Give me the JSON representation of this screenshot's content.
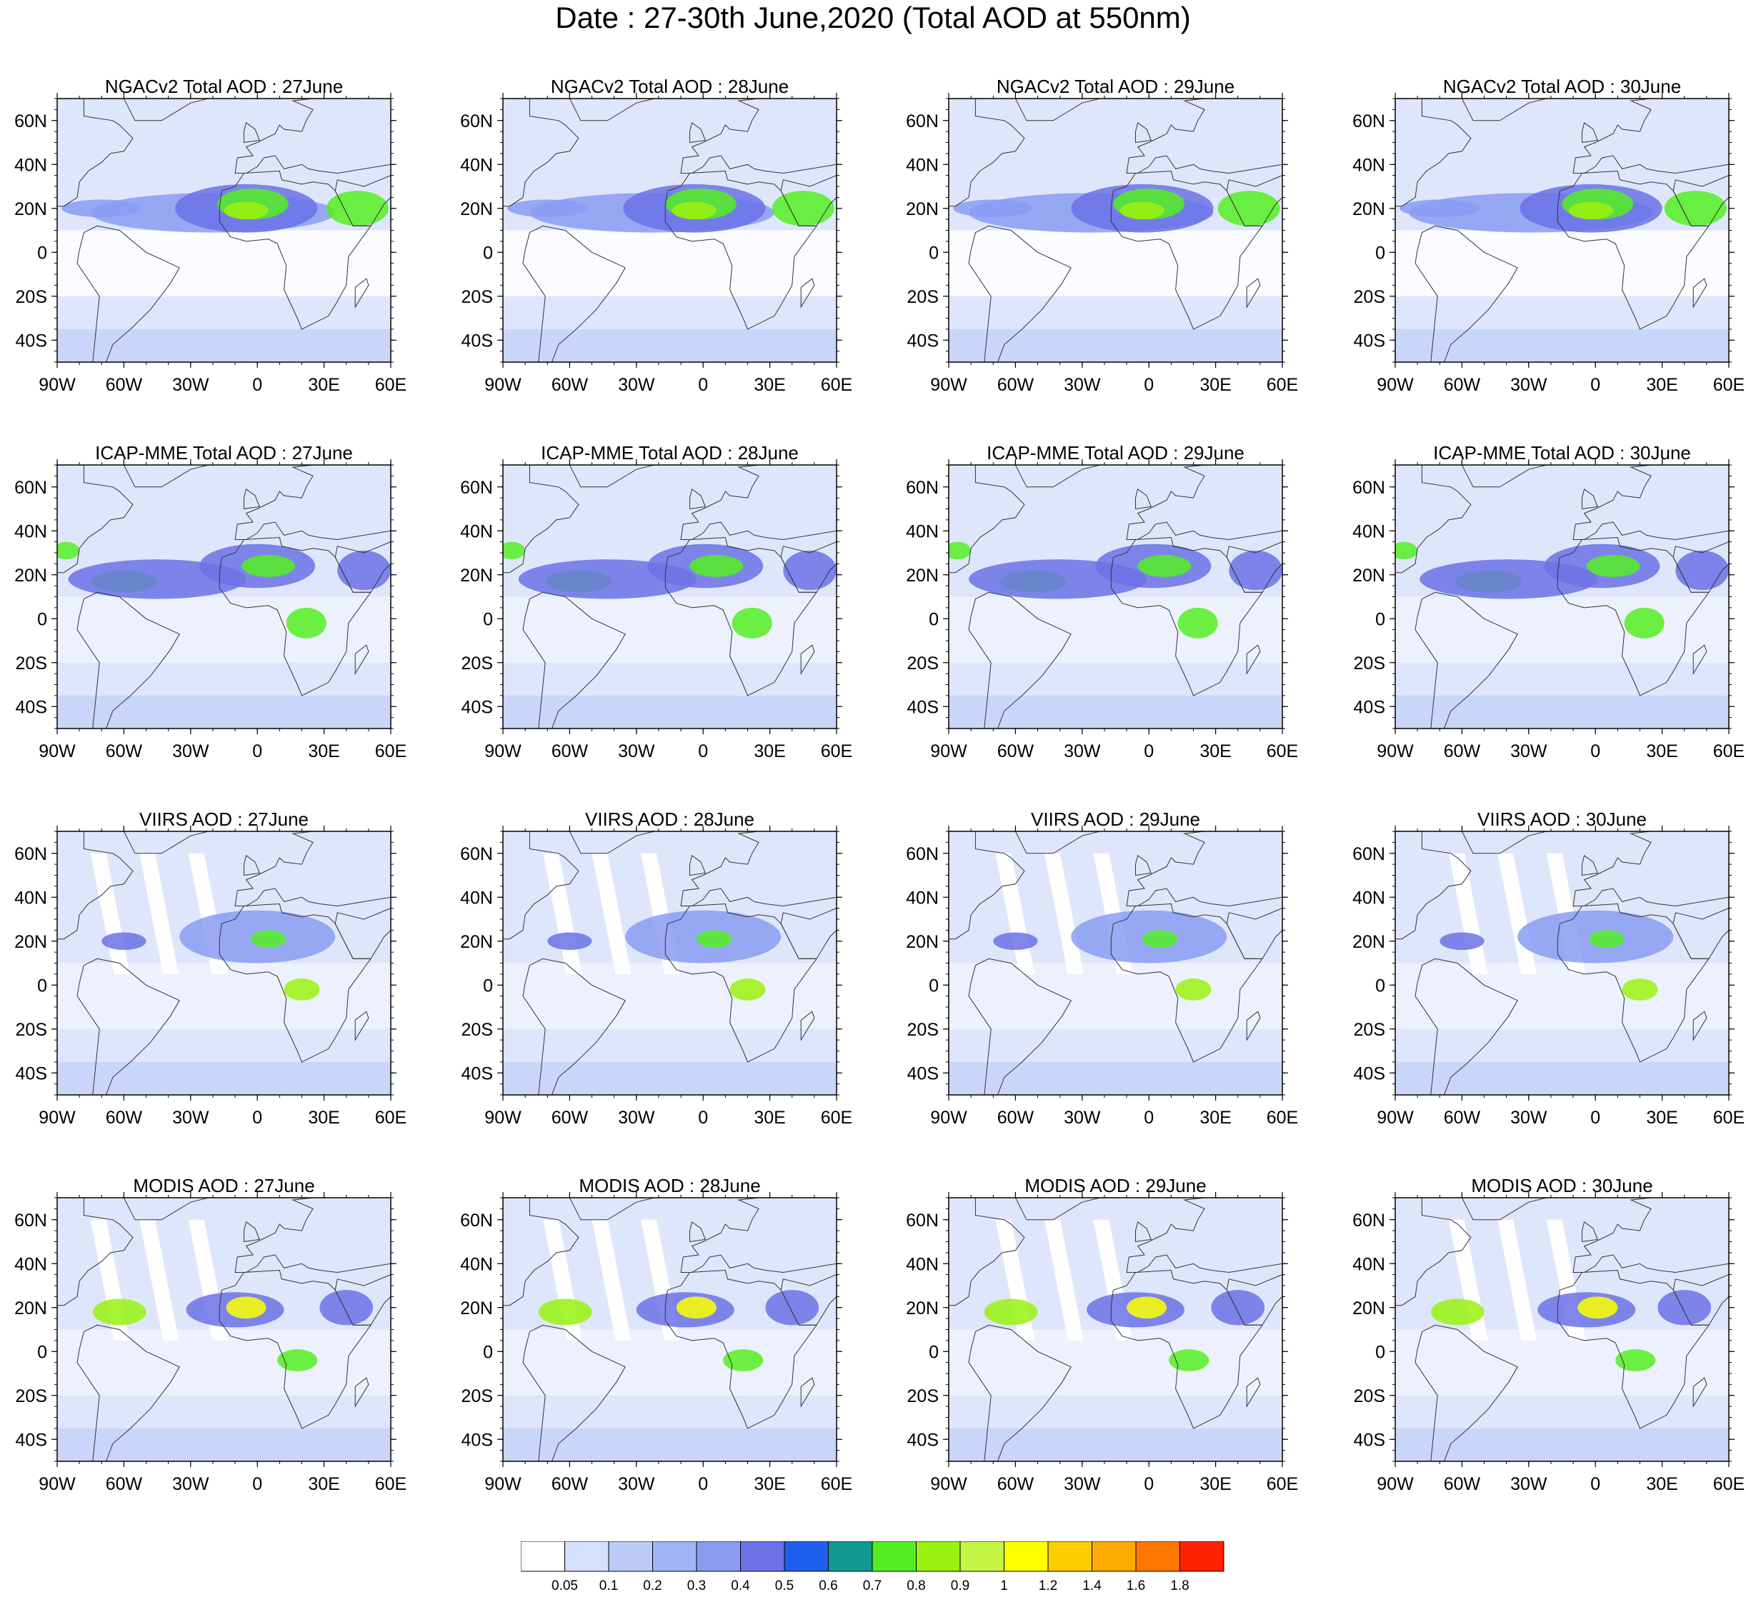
{
  "title": "Date : 27-30th June,2020 (Total AOD at 550nm)",
  "axes": {
    "lat_ticks": [
      "60N",
      "40N",
      "20N",
      "0",
      "20S",
      "40S"
    ],
    "lon_ticks": [
      "90W",
      "60W",
      "30W",
      "0",
      "30E",
      "60E"
    ]
  },
  "rows": [
    {
      "product": "NGACv2",
      "titles": [
        "NGACv2 Total AOD : 27June",
        "NGACv2 Total AOD : 28June",
        "NGACv2 Total AOD : 29June",
        "NGACv2 Total AOD : 30June"
      ]
    },
    {
      "product": "ICAP-MME",
      "titles": [
        "ICAP-MME Total AOD : 27June",
        "ICAP-MME Total AOD : 28June",
        "ICAP-MME Total AOD : 29June",
        "ICAP-MME Total AOD : 30June"
      ]
    },
    {
      "product": "VIIRS",
      "titles": [
        "VIIRS AOD : 27June",
        "VIIRS AOD : 28June",
        "VIIRS AOD : 29June",
        "VIIRS AOD : 30June"
      ]
    },
    {
      "product": "MODIS",
      "titles": [
        "MODIS AOD : 27June",
        "MODIS AOD : 28June",
        "MODIS AOD : 29June",
        "MODIS AOD : 30June"
      ]
    }
  ],
  "colorbar": {
    "labels": [
      "0.05",
      "0.1",
      "0.2",
      "0.3",
      "0.4",
      "0.5",
      "0.6",
      "0.7",
      "0.8",
      "0.9",
      "1",
      "1.2",
      "1.4",
      "1.6",
      "1.8"
    ],
    "colors": [
      "#ffffff",
      "#d6dffb",
      "#bccbf8",
      "#9fb5f6",
      "#8a9cf2",
      "#6b72e6",
      "#1f5ff0",
      "#119a90",
      "#55ee22",
      "#99f20f",
      "#c4f545",
      "#ffff00",
      "#ffcc00",
      "#ffaa00",
      "#ff7700",
      "#ff2200"
    ]
  },
  "palette": {
    "land": "#c8d5f8",
    "ocean": "#dfe6fb",
    "coast": "#333333"
  }
}
